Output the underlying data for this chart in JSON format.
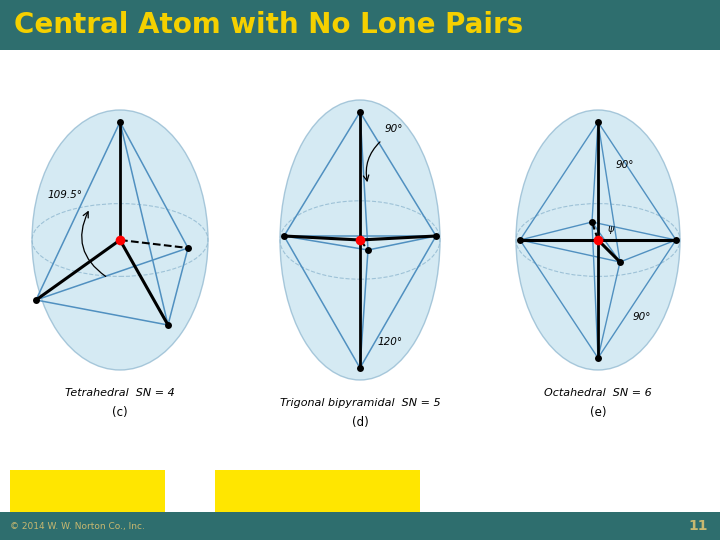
{
  "title": "Central Atom with No Lone Pairs",
  "title_color": "#F5D000",
  "title_bg": "#2E6E6E",
  "bg_color": "#FFFFFF",
  "footer_bg": "#2E6E6E",
  "footer_text": "© 2014 W. W. Norton Co., Inc.",
  "footer_color": "#C8B870",
  "page_number": "11",
  "yellow_color": "#FFE600",
  "blue_line": "#5090C0",
  "sphere_fill": "#C8E4F0",
  "sphere_edge": "#90B8D0"
}
